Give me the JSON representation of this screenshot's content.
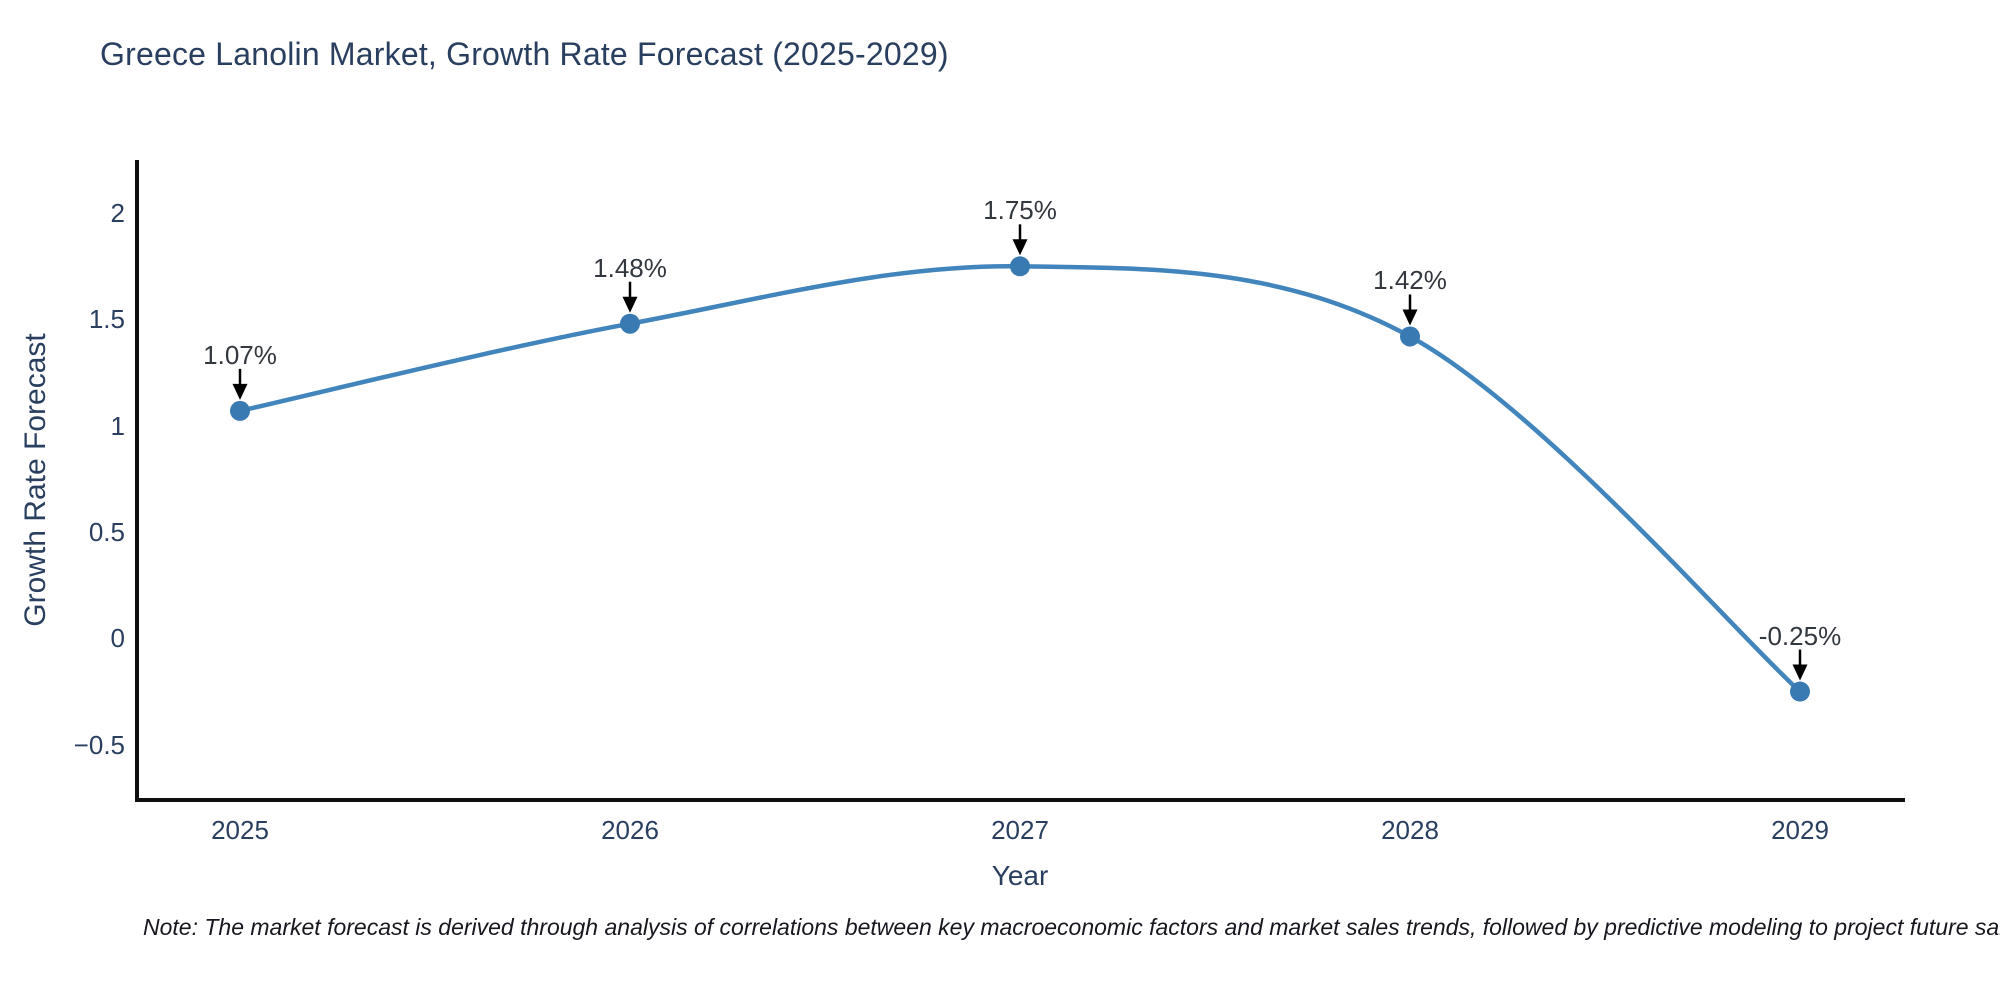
{
  "title": "Greece Lanolin Market, Growth Rate Forecast (2025-2029)",
  "note": "Note: The market forecast is derived through analysis of correlations between key macroeconomic factors and market sales trends, followed by predictive modeling to project future sales.",
  "chart_data": {
    "type": "line",
    "title": "Greece Lanolin Market, Growth Rate Forecast (2025-2029)",
    "xlabel": "Year",
    "ylabel": "Growth Rate Forecast",
    "x": [
      2025,
      2026,
      2027,
      2028,
      2029
    ],
    "xtick_labels": [
      "2025",
      "2026",
      "2027",
      "2028",
      "2029"
    ],
    "values": [
      1.07,
      1.48,
      1.75,
      1.42,
      -0.25
    ],
    "point_labels": [
      "1.07%",
      "1.48%",
      "1.75%",
      "1.42%",
      "-0.25%"
    ],
    "yticks": [
      2,
      1.5,
      1,
      0.5,
      0,
      -0.5
    ],
    "ytick_labels": [
      "2",
      "1.5",
      "1",
      "0.5",
      "0",
      "−0.5"
    ],
    "ylim": [
      -0.76,
      2.25
    ],
    "grid": false,
    "legend": false,
    "line_shape": "spline",
    "annotation_style": "down-arrow",
    "colors": {
      "line": "#4285bd",
      "marker": "#3a7ab3",
      "text": "#2a3f5f",
      "annotation_text": "#33383f",
      "axis": "#0f0f0f",
      "arrow": "#000000",
      "background": "#ffffff"
    }
  }
}
